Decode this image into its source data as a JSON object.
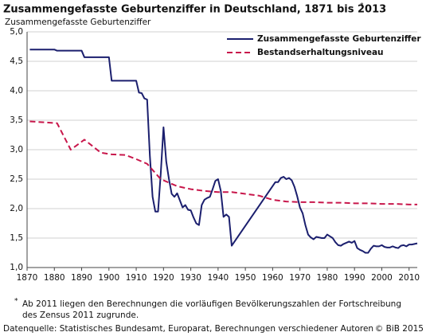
{
  "chart_data": {
    "type": "line",
    "title": "Zusammengefasste Geburtenziffer in Deutschland, 1871 bis 2013",
    "title_marker": "*",
    "y_label": "Zusammengefasste Geburtenziffer",
    "xlim": [
      1870,
      2013
    ],
    "xticks": [
      1870,
      1880,
      1890,
      1900,
      1910,
      1920,
      1930,
      1940,
      1950,
      1960,
      1970,
      1980,
      1990,
      2000,
      2010
    ],
    "ylim": [
      1,
      5
    ],
    "yticks": [
      {
        "value": 1,
        "label": "1,0"
      },
      {
        "value": 1.5,
        "label": "1,5"
      },
      {
        "value": 2,
        "label": "2,0"
      },
      {
        "value": 2.5,
        "label": "2,5"
      },
      {
        "value": 3,
        "label": "3,0"
      },
      {
        "value": 3.5,
        "label": "3,5"
      },
      {
        "value": 4,
        "label": "4,0"
      },
      {
        "value": 4.5,
        "label": "4,5"
      },
      {
        "value": 5,
        "label": "5,0"
      }
    ],
    "grid": true,
    "legend": "upper-right",
    "series": [
      {
        "name": "Zusammengefasste Geburtenziffer",
        "color": "#1b1f6e",
        "dash": false,
        "x": [
          1871,
          1880,
          1881,
          1890,
          1891,
          1900,
          1901,
          1910,
          1911,
          1912,
          1913,
          1914,
          1915,
          1916,
          1917,
          1918,
          1919,
          1920,
          1921,
          1922,
          1923,
          1924,
          1925,
          1926,
          1927,
          1928,
          1929,
          1930,
          1931,
          1932,
          1933,
          1934,
          1935,
          1936,
          1937,
          1938,
          1939,
          1940,
          1941,
          1942,
          1943,
          1944,
          1945,
          1961,
          1962,
          1963,
          1964,
          1965,
          1966,
          1967,
          1968,
          1969,
          1970,
          1971,
          1972,
          1973,
          1974,
          1975,
          1976,
          1977,
          1978,
          1979,
          1980,
          1981,
          1982,
          1983,
          1984,
          1985,
          1986,
          1987,
          1988,
          1989,
          1990,
          1991,
          1992,
          1993,
          1994,
          1995,
          1996,
          1997,
          1998,
          1999,
          2000,
          2001,
          2002,
          2003,
          2004,
          2005,
          2006,
          2007,
          2008,
          2009,
          2010,
          2011,
          2012,
          2013
        ],
        "values": [
          4.7,
          4.7,
          4.68,
          4.68,
          4.57,
          4.57,
          4.17,
          4.17,
          3.97,
          3.96,
          3.87,
          3.85,
          2.9,
          2.2,
          1.95,
          1.95,
          2.6,
          3.38,
          2.8,
          2.5,
          2.25,
          2.2,
          2.26,
          2.14,
          2.02,
          2.06,
          1.98,
          1.97,
          1.85,
          1.75,
          1.72,
          2.06,
          2.15,
          2.18,
          2.2,
          2.33,
          2.47,
          2.5,
          2.3,
          1.86,
          1.9,
          1.86,
          1.37,
          2.45,
          2.45,
          2.52,
          2.54,
          2.5,
          2.52,
          2.48,
          2.37,
          2.21,
          2.02,
          1.92,
          1.72,
          1.56,
          1.51,
          1.48,
          1.52,
          1.51,
          1.5,
          1.5,
          1.56,
          1.53,
          1.5,
          1.43,
          1.38,
          1.37,
          1.4,
          1.42,
          1.44,
          1.42,
          1.45,
          1.33,
          1.3,
          1.28,
          1.25,
          1.25,
          1.32,
          1.37,
          1.36,
          1.36,
          1.38,
          1.35,
          1.34,
          1.34,
          1.36,
          1.34,
          1.33,
          1.37,
          1.38,
          1.36,
          1.39,
          1.39,
          1.4,
          1.41
        ]
      },
      {
        "name": "Bestandserhaltungsniveau",
        "color": "#c8174b",
        "dash": true,
        "x": [
          1871,
          1881,
          1886,
          1891,
          1897,
          1901,
          1906,
          1910,
          1914,
          1919,
          1925,
          1930,
          1935,
          1940,
          1945,
          1950,
          1955,
          1960,
          1965,
          1970,
          1975,
          1980,
          1985,
          1990,
          1995,
          2000,
          2005,
          2010,
          2013
        ],
        "values": [
          3.48,
          3.45,
          3.0,
          3.17,
          2.95,
          2.92,
          2.91,
          2.84,
          2.76,
          2.5,
          2.38,
          2.33,
          2.3,
          2.28,
          2.28,
          2.25,
          2.22,
          2.15,
          2.12,
          2.11,
          2.11,
          2.1,
          2.1,
          2.09,
          2.09,
          2.08,
          2.08,
          2.07,
          2.07
        ]
      }
    ],
    "footnote_marker": "*",
    "footnote_lines": [
      "Ab 2011 liegen den Berechnungen die vorläufigen Bevölkerungszahlen der Fortschreibung",
      "des Zensus 2011 zugrunde."
    ],
    "source": "Datenquelle: Statistisches Bundesamt, Europarat, Berechnungen verschiedener Autoren",
    "copyright": "© BiB 2015"
  }
}
